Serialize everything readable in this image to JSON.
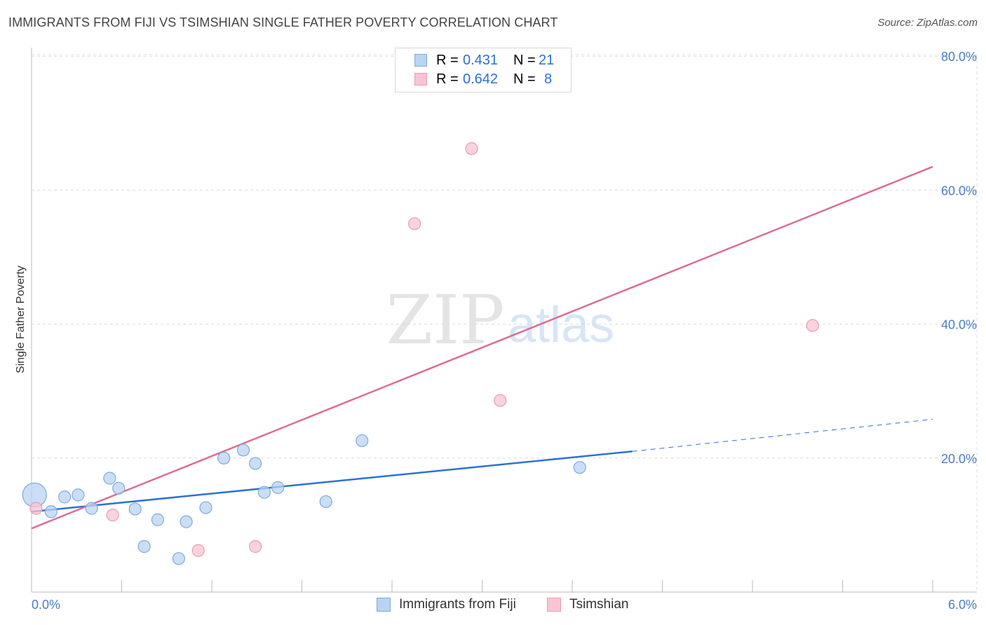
{
  "title": "IMMIGRANTS FROM FIJI VS TSIMSHIAN SINGLE FATHER POVERTY CORRELATION CHART",
  "source": "Source: ZipAtlas.com",
  "watermark": {
    "zip": "ZIP",
    "atlas": "atlas"
  },
  "legend": {
    "rows": [
      {
        "r_label": "R =",
        "r_value": "0.431",
        "n_label": "N =",
        "n_value": "21",
        "series": "fiji"
      },
      {
        "r_label": "R =",
        "r_value": "0.642",
        "n_label": "N =",
        "n_value": "8",
        "series": "tsimshian"
      }
    ]
  },
  "bottom_legend": [
    {
      "label": "Immigrants from Fiji",
      "series": "fiji"
    },
    {
      "label": "Tsimshian",
      "series": "tsimshian"
    }
  ],
  "colors": {
    "fiji_fill": "#b8d3f3",
    "fiji_stroke": "#7eaae0",
    "fiji_line": "#2f72cf",
    "tsimshian_fill": "#f8c4d3",
    "tsimshian_stroke": "#ee9ab2",
    "tsimshian_line": "#e06b93",
    "grid": "#dcdcdc",
    "axis": "#bbbbbb",
    "tick_label": "#4a7cc7"
  },
  "chart_data": {
    "type": "scatter",
    "title": "IMMIGRANTS FROM FIJI VS TSIMSHIAN SINGLE FATHER POVERTY CORRELATION CHART",
    "xlabel": "",
    "ylabel": "Single Father Poverty",
    "xlim": [
      0,
      6.0
    ],
    "ylim": [
      0,
      80
    ],
    "x_tick_labels": [
      "0.0%",
      "6.0%"
    ],
    "y_ticks": [
      20,
      40,
      60,
      80
    ],
    "y_tick_labels": [
      "20.0%",
      "40.0%",
      "60.0%",
      "80.0%"
    ],
    "grid": true,
    "series": [
      {
        "name": "Immigrants from Fiji",
        "key": "fiji",
        "points": [
          {
            "x": 0.02,
            "y": 14.5,
            "size": "large"
          },
          {
            "x": 0.13,
            "y": 12.0
          },
          {
            "x": 0.22,
            "y": 14.2
          },
          {
            "x": 0.31,
            "y": 14.5
          },
          {
            "x": 0.4,
            "y": 12.5
          },
          {
            "x": 0.52,
            "y": 17.0
          },
          {
            "x": 0.58,
            "y": 15.5
          },
          {
            "x": 0.69,
            "y": 12.4
          },
          {
            "x": 0.75,
            "y": 6.8
          },
          {
            "x": 0.84,
            "y": 10.8
          },
          {
            "x": 0.98,
            "y": 5.0
          },
          {
            "x": 1.03,
            "y": 10.5
          },
          {
            "x": 1.16,
            "y": 12.6
          },
          {
            "x": 1.28,
            "y": 20.0
          },
          {
            "x": 1.41,
            "y": 21.2
          },
          {
            "x": 1.49,
            "y": 19.2
          },
          {
            "x": 1.55,
            "y": 14.9
          },
          {
            "x": 1.64,
            "y": 15.6
          },
          {
            "x": 1.96,
            "y": 13.5
          },
          {
            "x": 2.2,
            "y": 22.6
          },
          {
            "x": 3.65,
            "y": 18.6
          }
        ],
        "trend": {
          "x0": 0.0,
          "y0": 12.0,
          "x1": 4.0,
          "y1": 21.0,
          "dash_to_x": 6.0,
          "dash_to_y": 25.8
        }
      },
      {
        "name": "Tsimshian",
        "key": "tsimshian",
        "points": [
          {
            "x": 0.03,
            "y": 12.5
          },
          {
            "x": 0.54,
            "y": 11.5
          },
          {
            "x": 1.11,
            "y": 6.2
          },
          {
            "x": 1.49,
            "y": 6.8
          },
          {
            "x": 2.55,
            "y": 55.0
          },
          {
            "x": 2.93,
            "y": 66.2
          },
          {
            "x": 3.12,
            "y": 28.6
          },
          {
            "x": 5.2,
            "y": 39.8
          }
        ],
        "trend": {
          "x0": 0.0,
          "y0": 9.5,
          "x1": 6.0,
          "y1": 63.5
        }
      }
    ]
  }
}
